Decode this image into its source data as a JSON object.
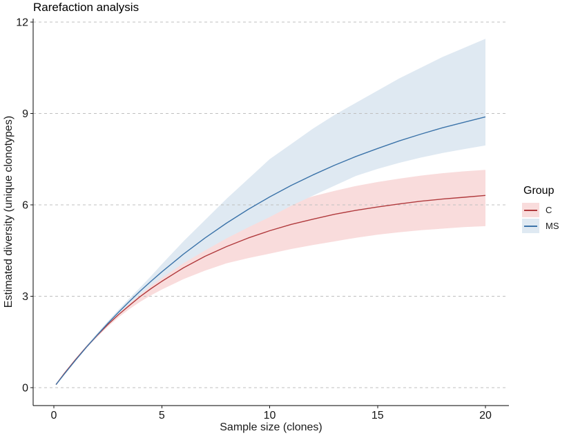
{
  "chart_data": {
    "type": "line",
    "title": "Rarefaction analysis",
    "xlabel": "Sample size (clones)",
    "ylabel": "Estimated diversity (unique clonotypes)",
    "legend_title": "Group",
    "legend_position": "right",
    "xlim": [
      0,
      20
    ],
    "ylim": [
      0,
      12
    ],
    "x_ticks": [
      0,
      5,
      10,
      15,
      20
    ],
    "y_ticks": [
      0,
      3,
      6,
      9,
      12
    ],
    "grid": "horizontal-dashed",
    "grid_color": "#bfbfbf",
    "axis_color": "#000000",
    "x": [
      0.1,
      0.5,
      1,
      1.5,
      2,
      2.5,
      3,
      3.5,
      4,
      4.5,
      5,
      6,
      7,
      8,
      9,
      10,
      11,
      12,
      13,
      14,
      15,
      16,
      17,
      18,
      19,
      20
    ],
    "series": [
      {
        "name": "C",
        "line_color": "#b0393c",
        "ribbon_color": "#f9dcdc",
        "mean": [
          0.1,
          0.48,
          0.92,
          1.33,
          1.71,
          2.07,
          2.4,
          2.7,
          2.99,
          3.25,
          3.49,
          3.93,
          4.31,
          4.63,
          4.91,
          5.15,
          5.36,
          5.53,
          5.69,
          5.82,
          5.93,
          6.03,
          6.12,
          6.19,
          6.25,
          6.31
        ],
        "lower": [
          0.09,
          0.46,
          0.89,
          1.29,
          1.66,
          2.0,
          2.31,
          2.58,
          2.82,
          3.03,
          3.22,
          3.56,
          3.84,
          4.08,
          4.25,
          4.4,
          4.55,
          4.68,
          4.8,
          4.92,
          5.02,
          5.1,
          5.17,
          5.22,
          5.27,
          5.3
        ],
        "upper": [
          0.11,
          0.5,
          0.95,
          1.37,
          1.76,
          2.14,
          2.5,
          2.84,
          3.16,
          3.46,
          3.75,
          4.26,
          4.7,
          5.1,
          5.48,
          5.82,
          6.06,
          6.28,
          6.46,
          6.62,
          6.75,
          6.86,
          6.96,
          7.04,
          7.1,
          7.15
        ]
      },
      {
        "name": "MS",
        "line_color": "#3b73a9",
        "ribbon_color": "#dfe9f2",
        "mean": [
          0.1,
          0.46,
          0.9,
          1.32,
          1.72,
          2.11,
          2.48,
          2.83,
          3.17,
          3.49,
          3.8,
          4.38,
          4.91,
          5.4,
          5.85,
          6.26,
          6.64,
          6.98,
          7.3,
          7.59,
          7.85,
          8.1,
          8.32,
          8.53,
          8.71,
          8.89
        ],
        "lower": [
          0.09,
          0.45,
          0.89,
          1.31,
          1.7,
          2.07,
          2.42,
          2.75,
          3.05,
          3.34,
          3.6,
          4.08,
          4.5,
          4.9,
          5.26,
          5.6,
          5.97,
          6.3,
          6.63,
          6.95,
          7.18,
          7.38,
          7.55,
          7.7,
          7.83,
          7.95
        ],
        "upper": [
          0.1,
          0.48,
          0.93,
          1.37,
          1.78,
          2.18,
          2.56,
          2.93,
          3.29,
          3.66,
          4.05,
          4.8,
          5.5,
          6.2,
          6.85,
          7.5,
          8.0,
          8.5,
          8.95,
          9.35,
          9.75,
          10.15,
          10.5,
          10.85,
          11.15,
          11.45
        ]
      }
    ]
  }
}
